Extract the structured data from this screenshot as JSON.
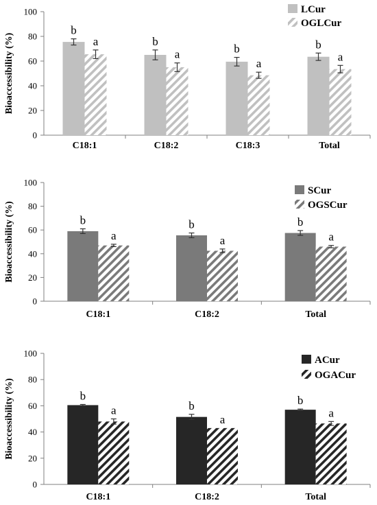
{
  "colors": {
    "LCur": "#c0c0c0",
    "SCur": "#7a7a7a",
    "ACur": "#262626",
    "axis": "#7f7f7f",
    "text": "#000000"
  },
  "chart_data": [
    {
      "type": "bar",
      "ylabel": "Bioaccessibility (%)",
      "ylim": [
        0,
        100
      ],
      "yticks": [
        0,
        20,
        40,
        60,
        80,
        100
      ],
      "grid": false,
      "legend_position": "top-right",
      "categories": [
        "C18:1",
        "C18:2",
        "C18:3",
        "Total"
      ],
      "series": [
        {
          "name": "LCur",
          "style": "solid",
          "color_key": "LCur",
          "values": [
            75.5,
            65,
            59.5,
            63.5
          ],
          "errors": [
            2.5,
            4,
            3.5,
            3
          ],
          "labels": [
            "b",
            "b",
            "b",
            "b"
          ]
        },
        {
          "name": "OGLCur",
          "style": "hatched",
          "color_key": "LCur",
          "values": [
            65.5,
            55,
            48.5,
            53.5
          ],
          "errors": [
            3.5,
            3.5,
            2.5,
            3
          ],
          "labels": [
            "a",
            "a",
            "a",
            "a"
          ]
        }
      ]
    },
    {
      "type": "bar",
      "ylabel": "Bioaccessibility (%)",
      "ylim": [
        0,
        100
      ],
      "yticks": [
        0,
        20,
        40,
        60,
        80,
        100
      ],
      "grid": false,
      "legend_position": "top-right",
      "categories": [
        "C18:1",
        "C18:2",
        "Total"
      ],
      "series": [
        {
          "name": "SCur",
          "style": "solid",
          "color_key": "SCur",
          "values": [
            59,
            55.5,
            57.5
          ],
          "errors": [
            2,
            2,
            2
          ],
          "labels": [
            "b",
            "b",
            "b"
          ]
        },
        {
          "name": "OGSCur",
          "style": "hatched",
          "color_key": "SCur",
          "values": [
            47,
            42.5,
            46
          ],
          "errors": [
            1,
            1.5,
            1
          ],
          "labels": [
            "a",
            "a",
            "a"
          ]
        }
      ]
    },
    {
      "type": "bar",
      "ylabel": "Bioaccessibility (%)",
      "ylim": [
        0,
        100
      ],
      "yticks": [
        0,
        20,
        40,
        60,
        80,
        100
      ],
      "grid": false,
      "legend_position": "top-right",
      "categories": [
        "C18:1",
        "C18:2",
        "Total"
      ],
      "series": [
        {
          "name": "ACur",
          "style": "solid",
          "color_key": "ACur",
          "values": [
            60.5,
            51.5,
            57
          ],
          "errors": [
            0.5,
            2,
            0.5
          ],
          "labels": [
            "b",
            "b",
            "b"
          ]
        },
        {
          "name": "OGACur",
          "style": "hatched",
          "color_key": "ACur",
          "values": [
            48,
            43,
            46.5
          ],
          "errors": [
            2,
            0,
            1.5
          ],
          "labels": [
            "a",
            "a",
            "a"
          ]
        }
      ]
    }
  ]
}
